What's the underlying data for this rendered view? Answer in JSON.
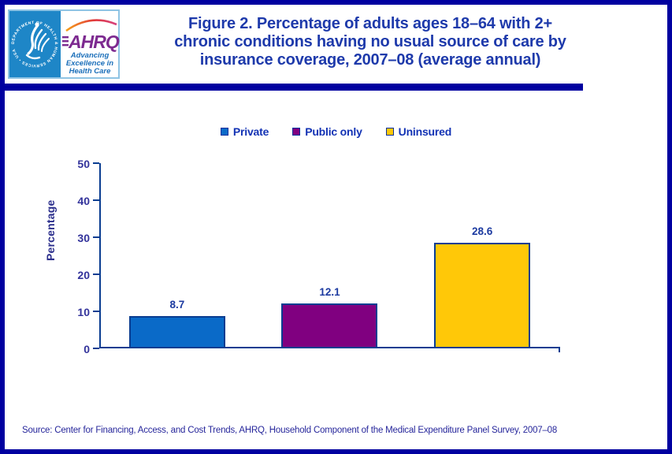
{
  "page": {
    "border_color": "#0000A0",
    "background": "#FFFFFF"
  },
  "header": {
    "logo": {
      "hhs_ring_text": "DEPARTMENT OF HEALTH & HUMAN SERVICES • USA",
      "ahrq_acronym": "AHRQ",
      "tagline_lines": [
        "Advancing",
        "Excellence in",
        "Health Care"
      ]
    },
    "title_lines": [
      "Figure 2. Percentage of adults ages 18–64 with 2+",
      "chronic conditions having no usual source of care by",
      "insurance coverage, 2007–08 (average annual)"
    ],
    "title_color": "#1E3AAB"
  },
  "chart_data": {
    "type": "bar",
    "title": "Figure 2. Percentage of adults ages 18–64 with 2+ chronic conditions having no usual source of care by insurance coverage, 2007–08 (average annual)",
    "categories": [
      "Private",
      "Public only",
      "Uninsured"
    ],
    "values": [
      8.7,
      12.1,
      28.6
    ],
    "colors": [
      "#0A6AC8",
      "#800080",
      "#FFC808"
    ],
    "bar_border_color": "#0A3D91",
    "xlabel": "",
    "ylabel": "Percentage",
    "ylim": [
      0,
      50
    ],
    "yticks": [
      0,
      10,
      20,
      30,
      40,
      50
    ],
    "grid": "off",
    "legend_position": "top",
    "axis_color": "#0A3D91",
    "tick_label_color": "#33339B",
    "value_label_color": "#1C3AA0"
  },
  "footer": {
    "source": "Source: Center for Financing, Access, and Cost Trends, AHRQ, Household Component of the Medical Expenditure Panel Survey, 2007–08"
  }
}
